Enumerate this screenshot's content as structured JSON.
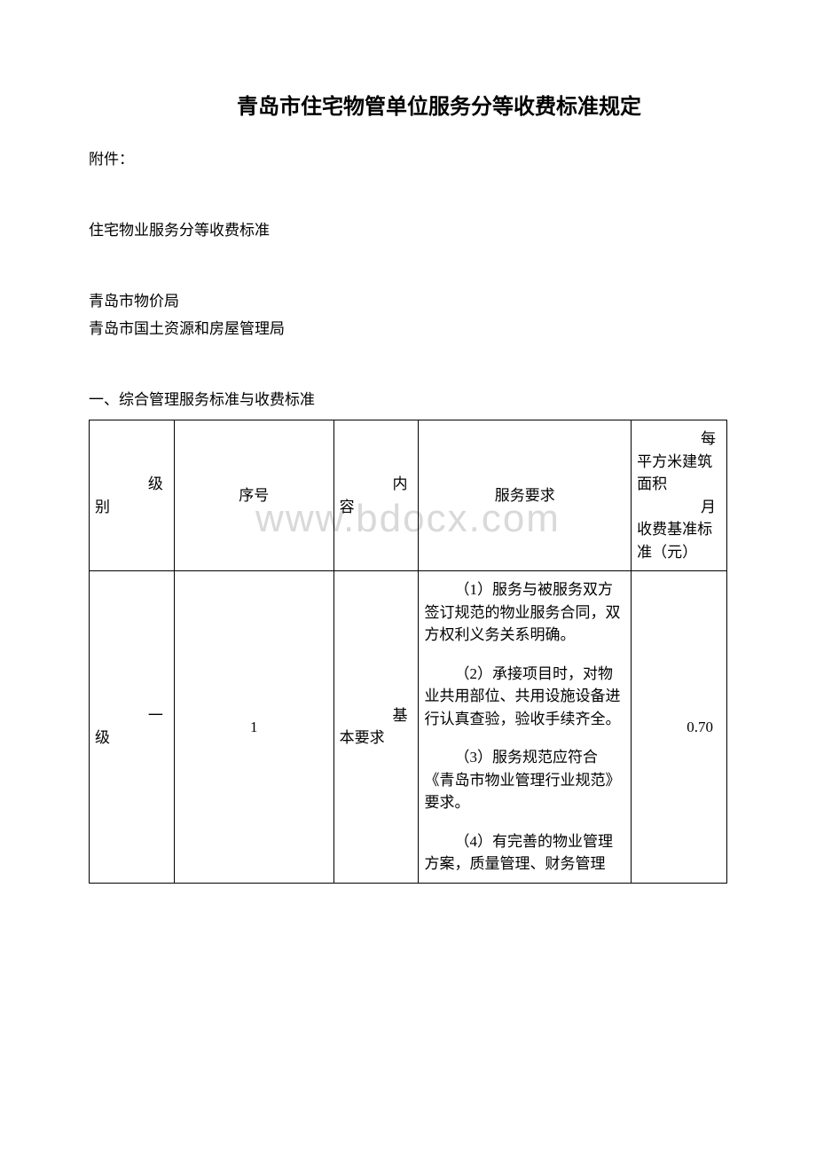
{
  "watermark": "www.bdocx.com",
  "title": "青岛市住宅物管单位服务分等收费标准规定",
  "attachment_label": "附件：",
  "subtitle": "住宅物业服务分等收费标准",
  "bureau1": "青岛市物价局",
  "bureau2": "青岛市国土资源和房屋管理局",
  "section_title": "一、综合管理服务标准与收费标准",
  "table": {
    "headers": {
      "level": "级别",
      "seq": "序号",
      "content": "内容",
      "req": "服务要求",
      "fee_line1": "每平方米建筑面积",
      "fee_line2": "月收费基准标准（元）"
    },
    "row": {
      "level": "一级",
      "seq": "1",
      "content": "基本要求",
      "fee": "0.70",
      "req1": "（1）服务与被服务双方签订规范的物业服务合同，双方权利义务关系明确。",
      "req2": "（2）承接项目时，对物业共用部位、共用设施设备进行认真查验，验收手续齐全。",
      "req3": "（3）服务规范应符合《青岛市物业管理行业规范》要求。",
      "req4": "（4）有完善的物业管理方案，质量管理、财务管理"
    }
  },
  "colors": {
    "background": "#ffffff",
    "text": "#000000",
    "border": "#000000",
    "watermark": "#d9d9d9"
  }
}
